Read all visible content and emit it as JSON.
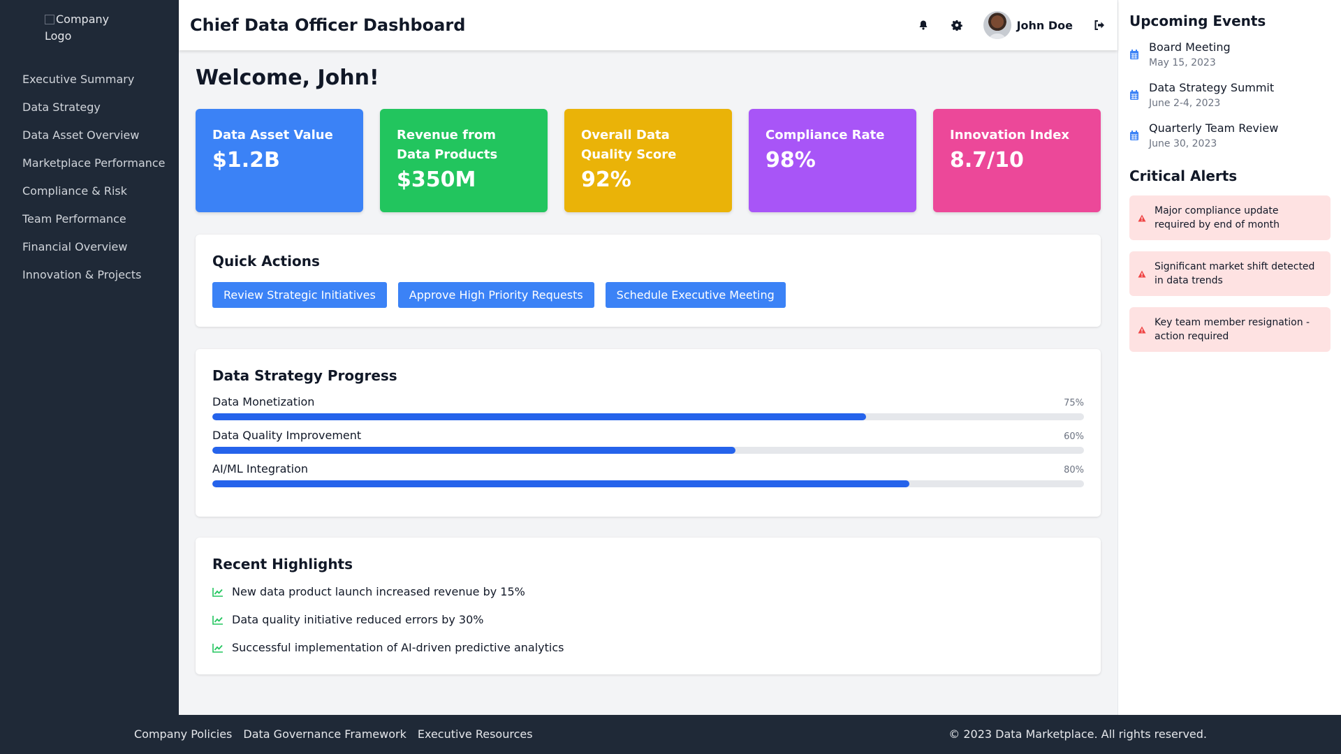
{
  "sidebar": {
    "logo_alt": "Company Logo",
    "items": [
      {
        "label": "Executive Summary"
      },
      {
        "label": "Data Strategy"
      },
      {
        "label": "Data Asset Overview"
      },
      {
        "label": "Marketplace Performance"
      },
      {
        "label": "Compliance & Risk"
      },
      {
        "label": "Team Performance"
      },
      {
        "label": "Financial Overview"
      },
      {
        "label": "Innovation & Projects"
      }
    ]
  },
  "header": {
    "title": "Chief Data Officer Dashboard",
    "user_name": "John Doe",
    "icons": [
      "bell-icon",
      "gear-icon",
      "sign-out-icon"
    ]
  },
  "main": {
    "welcome": "Welcome, John!",
    "cards": [
      {
        "title": "Data Asset Value",
        "value": "$1.2B",
        "color": "#3b82f6"
      },
      {
        "title": "Revenue from Data Products",
        "value": "$350M",
        "color": "#22c55e"
      },
      {
        "title": "Overall Data Quality Score",
        "value": "92%",
        "color": "#eab308"
      },
      {
        "title": "Compliance Rate",
        "value": "98%",
        "color": "#a855f7"
      },
      {
        "title": "Innovation Index",
        "value": "8.7/10",
        "color": "#ec4899"
      }
    ],
    "quick_actions": {
      "title": "Quick Actions",
      "buttons": [
        {
          "label": "Review Strategic Initiatives"
        },
        {
          "label": "Approve High Priority Requests"
        },
        {
          "label": "Schedule Executive Meeting"
        }
      ]
    },
    "progress": {
      "title": "Data Strategy Progress",
      "items": [
        {
          "label": "Data Monetization",
          "pct": "75%",
          "value": 75
        },
        {
          "label": "Data Quality Improvement",
          "pct": "60%",
          "value": 60
        },
        {
          "label": "AI/ML Integration",
          "pct": "80%",
          "value": 80
        }
      ]
    },
    "highlights": {
      "title": "Recent Highlights",
      "items": [
        {
          "text": "New data product launch increased revenue by 15%"
        },
        {
          "text": "Data quality initiative reduced errors by 30%"
        },
        {
          "text": "Successful implementation of AI-driven predictive analytics"
        }
      ]
    }
  },
  "right": {
    "events_title": "Upcoming Events",
    "events": [
      {
        "name": "Board Meeting",
        "date": "May 15, 2023"
      },
      {
        "name": "Data Strategy Summit",
        "date": "June 2-4, 2023"
      },
      {
        "name": "Quarterly Team Review",
        "date": "June 30, 2023"
      }
    ],
    "alerts_title": "Critical Alerts",
    "alerts": [
      {
        "text": "Major compliance update required by end of month"
      },
      {
        "text": "Significant market shift detected in data trends"
      },
      {
        "text": "Key team member resignation - action required"
      }
    ]
  },
  "footer": {
    "links": [
      {
        "label": "Company Policies"
      },
      {
        "label": "Data Governance Framework"
      },
      {
        "label": "Executive Resources"
      }
    ],
    "copyright": "© 2023 Data Marketplace. All rights reserved."
  },
  "colors": {
    "sidebar_bg": "#1f2937",
    "accent": "#3b82f6",
    "progress_fill": "#2563eb",
    "alert_bg": "#fee2e2",
    "alert_icon": "#ef4444",
    "highlight_icon": "#22c55e"
  }
}
